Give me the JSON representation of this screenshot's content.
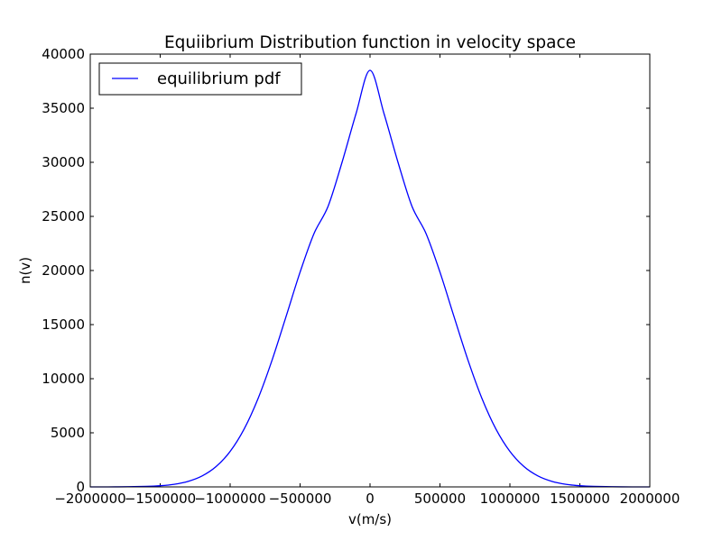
{
  "chart_data": {
    "type": "line",
    "title": "Equiibrium Distribution function in velocity space",
    "xlabel": "v(m/s)",
    "ylabel": "n(v)",
    "xlim": [
      -2000000,
      2000000
    ],
    "ylim": [
      0,
      40000
    ],
    "x_ticks": [
      -2000000,
      -1500000,
      -1000000,
      -500000,
      0,
      500000,
      1000000,
      1500000,
      2000000
    ],
    "x_tick_labels": [
      "−2000000",
      "−1500000",
      "−1000000",
      "−500000",
      "0",
      "500000",
      "1000000",
      "1500000",
      "2000000"
    ],
    "y_ticks": [
      0,
      5000,
      10000,
      15000,
      20000,
      25000,
      30000,
      35000,
      40000
    ],
    "y_tick_labels": [
      "0",
      "5000",
      "10000",
      "15000",
      "20000",
      "25000",
      "30000",
      "35000",
      "40000"
    ],
    "legend_position": "top-left",
    "grid": false,
    "series": [
      {
        "name": "equilibrium pdf",
        "color": "#0000ff",
        "x": [
          -2000000,
          -1800000,
          -1600000,
          -1500000,
          -1400000,
          -1300000,
          -1200000,
          -1100000,
          -1000000,
          -900000,
          -800000,
          -700000,
          -600000,
          -500000,
          -400000,
          -300000,
          -200000,
          -100000,
          0,
          100000,
          200000,
          300000,
          400000,
          500000,
          600000,
          700000,
          800000,
          900000,
          1000000,
          1100000,
          1200000,
          1300000,
          1400000,
          1500000,
          1600000,
          1800000,
          2000000
        ],
        "y": [
          1,
          7,
          45,
          108,
          243,
          513,
          1015,
          1884,
          3278,
          5348,
          8180,
          11726,
          15757,
          19847,
          23430,
          25925,
          30000,
          34500,
          38500,
          34500,
          30000,
          25925,
          23430,
          19847,
          15757,
          11726,
          8180,
          5348,
          3278,
          1884,
          1015,
          513,
          243,
          108,
          45,
          7,
          1
        ]
      }
    ]
  }
}
